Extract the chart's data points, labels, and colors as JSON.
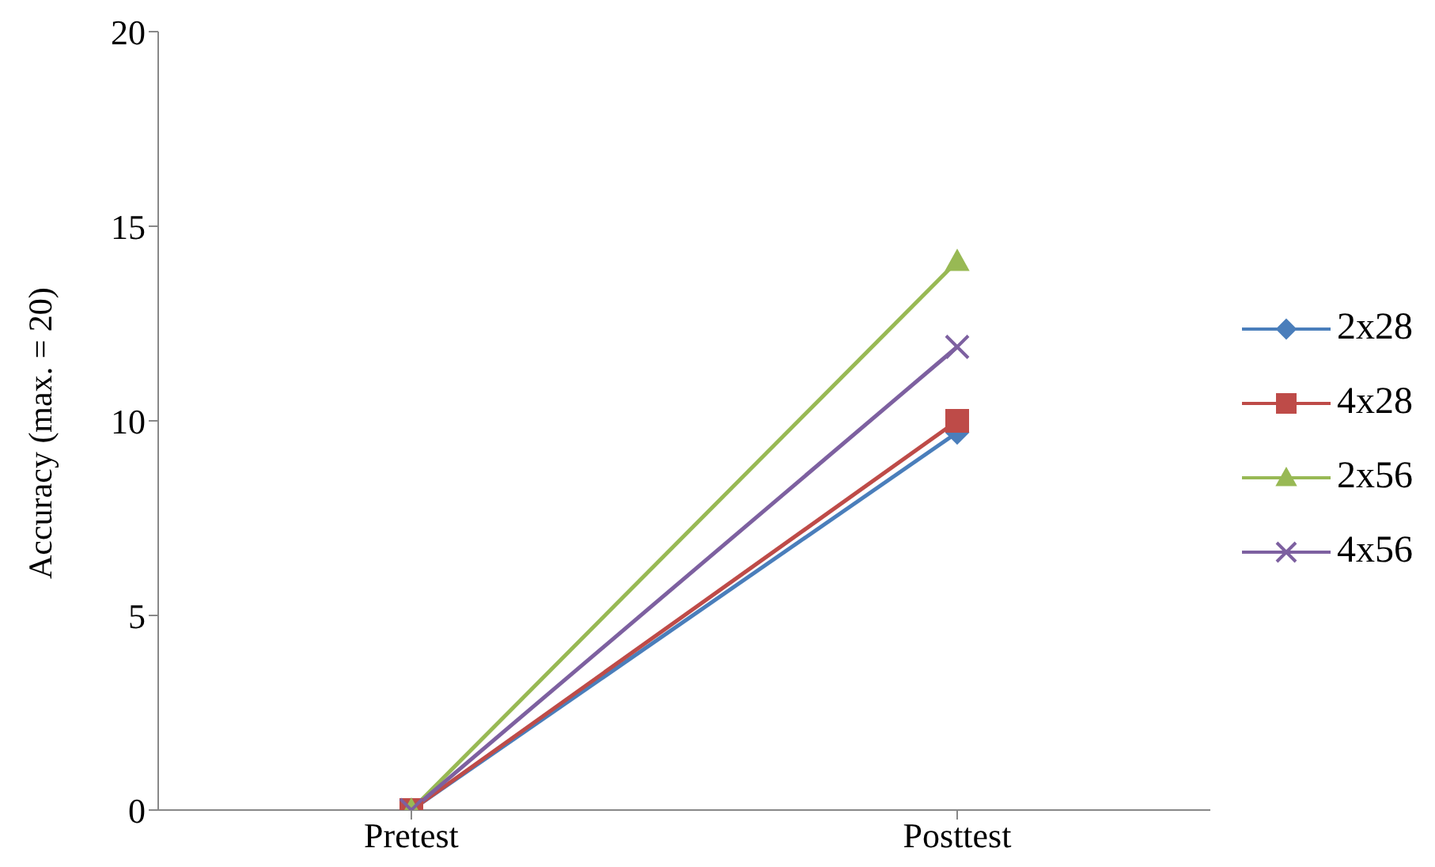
{
  "chart_data": {
    "type": "line",
    "ylabel": "Accuracy (max. = 20)",
    "categories": [
      "Pretest",
      "Posttest"
    ],
    "series": [
      {
        "name": "2x28",
        "color": "#4a7ebb",
        "values": [
          0,
          9.7
        ],
        "marker": "diamond"
      },
      {
        "name": "4x28",
        "color": "#be4b48",
        "values": [
          0,
          10.0
        ],
        "marker": "square"
      },
      {
        "name": "2x56",
        "color": "#98b954",
        "values": [
          0,
          14.1
        ],
        "marker": "triangle"
      },
      {
        "name": "4x56",
        "color": "#7d60a0",
        "values": [
          0,
          11.9
        ],
        "marker": "cross"
      }
    ],
    "ylim": [
      0,
      20
    ],
    "yticks": [
      0,
      5,
      10,
      15,
      20
    ],
    "grid": false,
    "legend": "right"
  }
}
